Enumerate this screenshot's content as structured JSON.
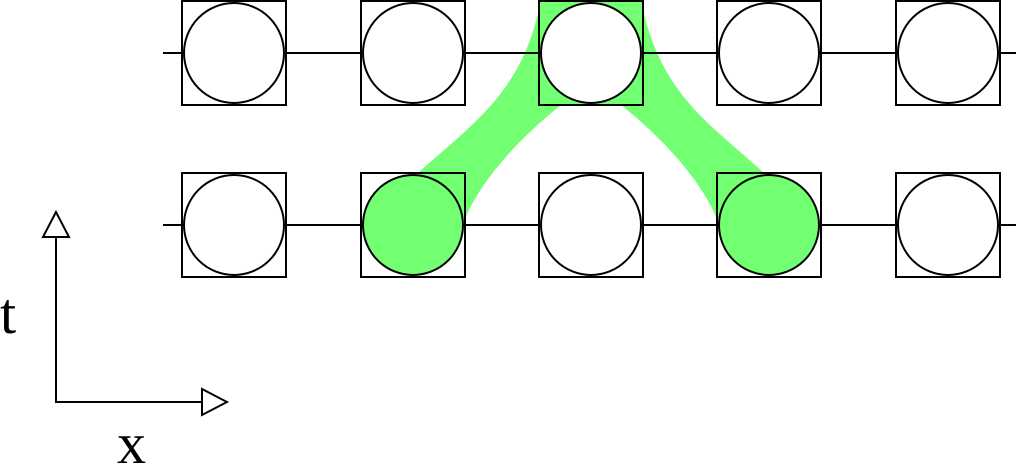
{
  "diagram": {
    "rows": [
      {
        "name": "upper",
        "highlighted_cells": [
          2
        ]
      },
      {
        "name": "lower",
        "highlighted_cells": [
          1,
          3
        ]
      }
    ],
    "cells_per_row": 5,
    "highlight_color": "#5cff5c",
    "highlight_fill_color": "#72ff72",
    "connections": [
      {
        "from_row": "upper",
        "from_cell": 2,
        "to_row": "lower",
        "to_cell": 1
      },
      {
        "from_row": "upper",
        "from_cell": 2,
        "to_row": "lower",
        "to_cell": 3
      }
    ],
    "axes": {
      "vertical_label": "t",
      "horizontal_label": "x"
    }
  }
}
